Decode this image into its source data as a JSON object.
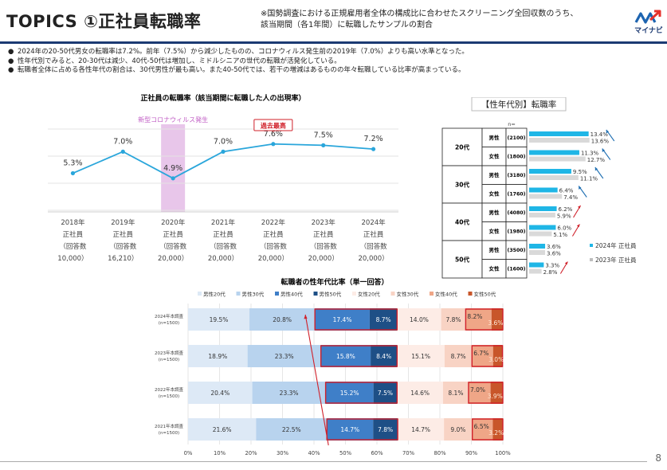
{
  "header": {
    "title": "TOPICS ①正社員転職率",
    "note_line1": "※国勢調査における正規雇用者全体の構成比に合わせたスクリーニング全回収数のうち、",
    "note_line2": "該当期間（各1年間）に転職したサンプルの割合",
    "logo_text": "マイナビ"
  },
  "bullets": [
    "2024年の20-50代男女の転職率は7.2%。前年（7.5%）から減少したものの、コロナウィルス発生前の2019年（7.0%）よりも高い水準となった。",
    "性年代別でみると、20-30代は減少、40代-50代は増加し、ミドルシニアの世代の転職が活発化している。",
    "転職者全体に占める各性年代の割合は、30代男性が最も高い。また40-50代では、若干の増減はあるものの年々転職している比率が高まっている。"
  ],
  "page_number": "8",
  "chart_data": [
    {
      "type": "line",
      "title": "正社員の転職率（該当期間に転職した人の出現率）",
      "categories": [
        [
          "2018年",
          "正社員",
          "（回答数",
          "10,000）"
        ],
        [
          "2019年",
          "正社員",
          "（回答数",
          "16,210）"
        ],
        [
          "2020年",
          "正社員",
          "（回答数",
          "20,000）"
        ],
        [
          "2021年",
          "正社員",
          "（回答数",
          "20,000）"
        ],
        [
          "2022年",
          "正社員",
          "（回答数",
          "20,000）"
        ],
        [
          "2023年",
          "正社員",
          "（回答数",
          "20,000）"
        ],
        [
          "2024年",
          "正社員",
          "（回答数",
          "20,000）"
        ]
      ],
      "values": [
        5.3,
        7.0,
        4.9,
        7.0,
        7.6,
        7.5,
        7.2
      ],
      "value_labels": [
        "5.3%",
        "7.0%",
        "4.9%",
        "7.0%",
        "7.6%",
        "7.5%",
        "7.2%"
      ],
      "ylim": [
        0,
        10
      ],
      "grid": true,
      "annotations": {
        "covid_label": "新型コロナウィルス発生",
        "covid_category_index": 2,
        "record_label": "過去最高",
        "record_category_index": 4
      },
      "colors": {
        "line": "#2aa6db",
        "covid_band": "#e8c6ea",
        "covid_text": "#c05cc4",
        "record": "#d0202a"
      }
    },
    {
      "type": "bar",
      "title": "【性年代別】転職率",
      "n_label": "n=",
      "groups": [
        {
          "age": "20代",
          "rows": [
            {
              "gender": "男性",
              "n": "(2100)",
              "v2024": 13.4,
              "v2023": 13.6,
              "l2024": "13.4%",
              "l2023": "13.6%",
              "trend": "down"
            },
            {
              "gender": "女性",
              "n": "(1800)",
              "v2024": 11.3,
              "v2023": 12.7,
              "l2024": "11.3%",
              "l2023": "12.7%",
              "trend": "down"
            }
          ]
        },
        {
          "age": "30代",
          "rows": [
            {
              "gender": "男性",
              "n": "(3180)",
              "v2024": 9.5,
              "v2023": 11.1,
              "l2024": "9.5%",
              "l2023": "11.1%",
              "trend": "down"
            },
            {
              "gender": "女性",
              "n": "(1760)",
              "v2024": 6.4,
              "v2023": 7.4,
              "l2024": "6.4%",
              "l2023": "7.4%",
              "trend": "down"
            }
          ]
        },
        {
          "age": "40代",
          "rows": [
            {
              "gender": "男性",
              "n": "(4080)",
              "v2024": 6.2,
              "v2023": 5.9,
              "l2024": "6.2%",
              "l2023": "5.9%",
              "trend": "up"
            },
            {
              "gender": "女性",
              "n": "(1980)",
              "v2024": 6.0,
              "v2023": 5.1,
              "l2024": "6.0%",
              "l2023": "5.1%",
              "trend": "up"
            }
          ]
        },
        {
          "age": "50代",
          "rows": [
            {
              "gender": "男性",
              "n": "(3500)",
              "v2024": 3.6,
              "v2023": 3.6,
              "l2024": "3.6%",
              "l2023": "3.6%",
              "trend": "none"
            },
            {
              "gender": "女性",
              "n": "(1600)",
              "v2024": 3.3,
              "v2023": 2.8,
              "l2024": "3.3%",
              "l2023": "2.8%",
              "trend": "up"
            }
          ]
        }
      ],
      "series": [
        {
          "name": "2024年 正社員",
          "color": "#1fb6e6"
        },
        {
          "name": "2023年 正社員",
          "color": "#d9d9d9"
        }
      ],
      "xlim": [
        0,
        14
      ],
      "legend_position": "right",
      "colors": {
        "down_arrow": "#1f6fb2",
        "up_arrow": "#d0202a"
      }
    },
    {
      "type": "bar",
      "stacked": true,
      "title": "転職者の性年代比率（単一回答）",
      "categories": [
        [
          "2024年本調査",
          "(n=1500)"
        ],
        [
          "2023年本調査",
          "(n=1500)"
        ],
        [
          "2022年本調査",
          "(n=1500)"
        ],
        [
          "2021年本調査",
          "(n=1500)"
        ]
      ],
      "series": [
        {
          "name": "男性20代",
          "color": "#dde9f6",
          "text": "#333333",
          "values": [
            19.5,
            18.9,
            20.4,
            21.6
          ],
          "labels": [
            "19.5%",
            "18.9%",
            "20.4%",
            "21.6%"
          ]
        },
        {
          "name": "男性30代",
          "color": "#b8d3ee",
          "text": "#333333",
          "values": [
            20.8,
            23.3,
            23.3,
            22.5
          ],
          "labels": [
            "20.8%",
            "23.3%",
            "23.3%",
            "22.5%"
          ]
        },
        {
          "name": "男性40代",
          "color": "#3f7fc8",
          "text": "#ffffff",
          "values": [
            17.4,
            15.8,
            15.2,
            14.7
          ],
          "labels": [
            "17.4%",
            "15.8%",
            "15.2%",
            "14.7%"
          ],
          "highlight": true
        },
        {
          "name": "男性50代",
          "color": "#1e4f86",
          "text": "#ffffff",
          "values": [
            8.7,
            8.4,
            7.5,
            7.8
          ],
          "labels": [
            "8.7%",
            "8.4%",
            "7.5%",
            "7.8%"
          ],
          "highlight": true
        },
        {
          "name": "女性20代",
          "color": "#fdece6",
          "text": "#333333",
          "values": [
            14.0,
            15.1,
            14.6,
            14.7
          ],
          "labels": [
            "14.0%",
            "15.1%",
            "14.6%",
            "14.7%"
          ]
        },
        {
          "name": "女性30代",
          "color": "#f8d3c4",
          "text": "#333333",
          "values": [
            7.8,
            8.7,
            8.1,
            9.0
          ],
          "labels": [
            "7.8%",
            "8.7%",
            "8.1%",
            "9.0%"
          ]
        },
        {
          "name": "女性40代",
          "color": "#efa687",
          "text": "#333333",
          "values": [
            8.2,
            6.7,
            7.0,
            6.5
          ],
          "labels": [
            "8.2%",
            "6.7%",
            "7.0%",
            "6.5%"
          ],
          "highlight": true
        },
        {
          "name": "女性50代",
          "color": "#c8562a",
          "text": "#ffe9d6",
          "values": [
            3.6,
            3.0,
            3.9,
            3.2
          ],
          "labels": [
            "3.6%",
            "3.0%",
            "3.9%",
            "3.2%"
          ],
          "highlight": true
        }
      ],
      "xlim": [
        0,
        100
      ],
      "xticks": [
        "0%",
        "10%",
        "20%",
        "30%",
        "40%",
        "50%",
        "60%",
        "70%",
        "80%",
        "90%",
        "100%"
      ],
      "legend_position": "top",
      "grid": true,
      "colors": {
        "highlight_box": "#d0202a"
      }
    }
  ]
}
